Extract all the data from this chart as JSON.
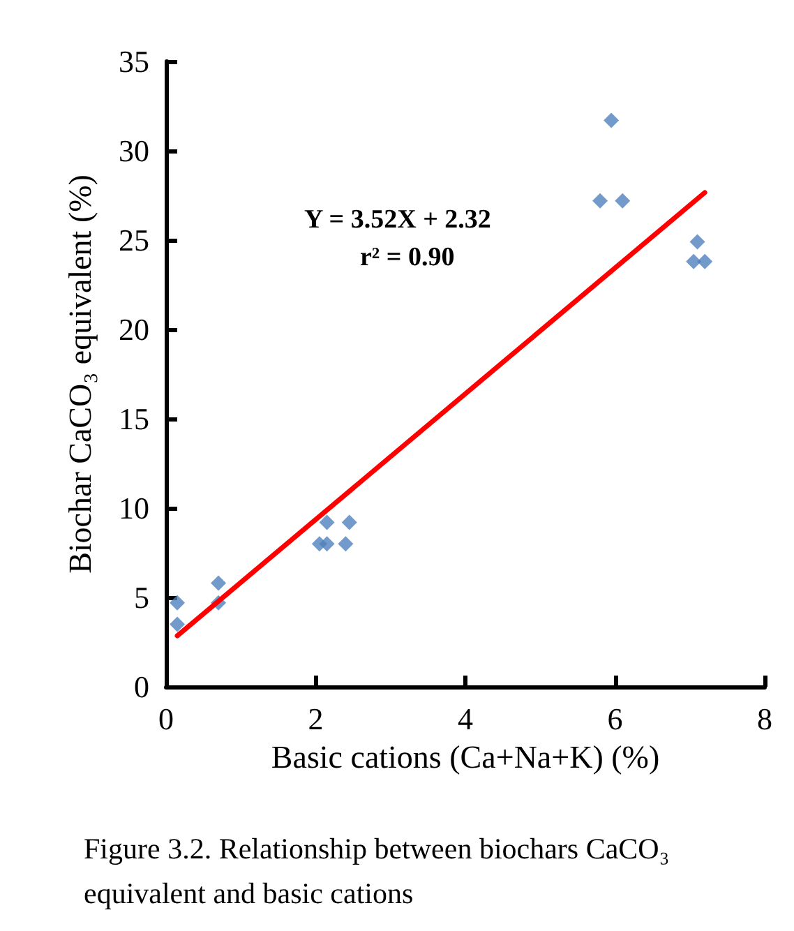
{
  "chart_data": {
    "type": "scatter",
    "xlabel": "Basic cations (Ca+Na+K) (%)",
    "ylabel": "Biochar CaCO₃ equivalent (%)",
    "annotations": [
      "Y = 3.52X + 2.32",
      "r² = 0.90",
      "Figure 3.2. Relationship between biochars CaCO₃ equivalent and basic cations"
    ],
    "series": [
      {
        "color": "#4f81bd",
        "marker": "diamond",
        "x": [
          0.15,
          0.15,
          0.7,
          0.7,
          2.05,
          2.15,
          2.15,
          2.4,
          2.45,
          5.95,
          5.8,
          6.1,
          7.1,
          7.05,
          7.2
        ],
        "values": [
          4.7,
          3.5,
          5.8,
          4.7,
          8.0,
          8.0,
          9.2,
          8.0,
          9.2,
          31.7,
          27.2,
          27.2,
          24.9,
          23.8,
          23.8
        ]
      },
      {
        "type": "line",
        "color": "#ff0000",
        "marker": "none",
        "x": [
          0.15,
          7.2
        ],
        "values": [
          2.85,
          27.66
        ]
      }
    ],
    "xlim": [
      0,
      8
    ],
    "xticks": [
      0,
      2,
      4,
      6,
      8
    ],
    "ylim": [
      0,
      35
    ],
    "yticks": [
      0,
      5,
      10,
      15,
      20,
      25,
      30,
      35
    ],
    "grid": false
  }
}
